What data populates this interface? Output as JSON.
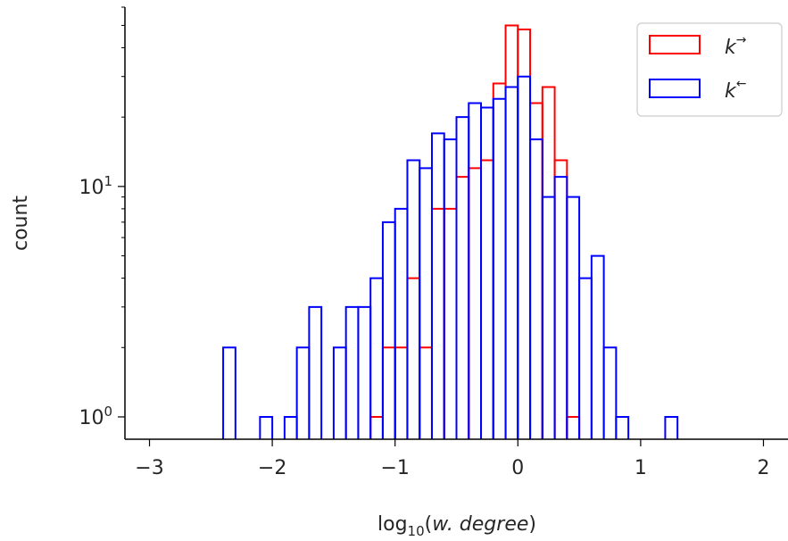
{
  "chart_data": {
    "type": "histogram",
    "xlabel": "log10(w. degree)",
    "ylabel": "count",
    "xlim": [
      -3.2,
      2.2
    ],
    "ylim": [
      0.8,
      60
    ],
    "yscale": "log",
    "grid": false,
    "legend_position": "top-right",
    "x_ticks": [
      {
        "value": -3,
        "label": "−3"
      },
      {
        "value": -2,
        "label": "−2"
      },
      {
        "value": -1,
        "label": "−1"
      },
      {
        "value": 0,
        "label": "0"
      },
      {
        "value": 1,
        "label": "1"
      },
      {
        "value": 2,
        "label": "2"
      }
    ],
    "y_ticks": [
      {
        "value": 1,
        "base": "10",
        "exp": "0"
      },
      {
        "value": 10,
        "base": "10",
        "exp": "1"
      }
    ],
    "series": [
      {
        "name": "k→",
        "legend_base": "k",
        "legend_sup": "→",
        "color": "#ff0000",
        "bins": [
          {
            "x0": -1.2,
            "x1": -1.1,
            "count": 1
          },
          {
            "x0": -1.1,
            "x1": -1.0,
            "count": 2
          },
          {
            "x0": -1.0,
            "x1": -0.9,
            "count": 2
          },
          {
            "x0": -0.9,
            "x1": -0.8,
            "count": 4
          },
          {
            "x0": -0.8,
            "x1": -0.7,
            "count": 2
          },
          {
            "x0": -0.7,
            "x1": -0.6,
            "count": 8
          },
          {
            "x0": -0.6,
            "x1": -0.5,
            "count": 8
          },
          {
            "x0": -0.5,
            "x1": -0.4,
            "count": 11
          },
          {
            "x0": -0.4,
            "x1": -0.3,
            "count": 12
          },
          {
            "x0": -0.3,
            "x1": -0.2,
            "count": 13
          },
          {
            "x0": -0.2,
            "x1": -0.1,
            "count": 28
          },
          {
            "x0": -0.1,
            "x1": 0.0,
            "count": 50
          },
          {
            "x0": 0.0,
            "x1": 0.1,
            "count": 48
          },
          {
            "x0": 0.1,
            "x1": 0.2,
            "count": 23
          },
          {
            "x0": 0.2,
            "x1": 0.3,
            "count": 27
          },
          {
            "x0": 0.3,
            "x1": 0.4,
            "count": 13
          },
          {
            "x0": 0.4,
            "x1": 0.5,
            "count": 1
          }
        ]
      },
      {
        "name": "k←",
        "legend_base": "k",
        "legend_sup": "←",
        "color": "#0000ff",
        "bins": [
          {
            "x0": -2.4,
            "x1": -2.3,
            "count": 2
          },
          {
            "x0": -2.1,
            "x1": -2.0,
            "count": 1
          },
          {
            "x0": -1.9,
            "x1": -1.8,
            "count": 1
          },
          {
            "x0": -1.8,
            "x1": -1.7,
            "count": 2
          },
          {
            "x0": -1.7,
            "x1": -1.6,
            "count": 3
          },
          {
            "x0": -1.5,
            "x1": -1.4,
            "count": 2
          },
          {
            "x0": -1.4,
            "x1": -1.3,
            "count": 3
          },
          {
            "x0": -1.3,
            "x1": -1.2,
            "count": 3
          },
          {
            "x0": -1.2,
            "x1": -1.1,
            "count": 4
          },
          {
            "x0": -1.1,
            "x1": -1.0,
            "count": 7
          },
          {
            "x0": -1.0,
            "x1": -0.9,
            "count": 8
          },
          {
            "x0": -0.9,
            "x1": -0.8,
            "count": 13
          },
          {
            "x0": -0.8,
            "x1": -0.7,
            "count": 12
          },
          {
            "x0": -0.7,
            "x1": -0.6,
            "count": 17
          },
          {
            "x0": -0.6,
            "x1": -0.5,
            "count": 16
          },
          {
            "x0": -0.5,
            "x1": -0.4,
            "count": 20
          },
          {
            "x0": -0.4,
            "x1": -0.3,
            "count": 23
          },
          {
            "x0": -0.3,
            "x1": -0.2,
            "count": 22
          },
          {
            "x0": -0.2,
            "x1": -0.1,
            "count": 24
          },
          {
            "x0": -0.1,
            "x1": 0.0,
            "count": 27
          },
          {
            "x0": 0.0,
            "x1": 0.1,
            "count": 30
          },
          {
            "x0": 0.1,
            "x1": 0.2,
            "count": 16
          },
          {
            "x0": 0.2,
            "x1": 0.3,
            "count": 9
          },
          {
            "x0": 0.3,
            "x1": 0.4,
            "count": 11
          },
          {
            "x0": 0.4,
            "x1": 0.5,
            "count": 9
          },
          {
            "x0": 0.5,
            "x1": 0.6,
            "count": 4
          },
          {
            "x0": 0.6,
            "x1": 0.7,
            "count": 5
          },
          {
            "x0": 0.7,
            "x1": 0.8,
            "count": 2
          },
          {
            "x0": 0.8,
            "x1": 0.9,
            "count": 1
          },
          {
            "x0": 1.2,
            "x1": 1.3,
            "count": 1
          }
        ]
      }
    ]
  }
}
